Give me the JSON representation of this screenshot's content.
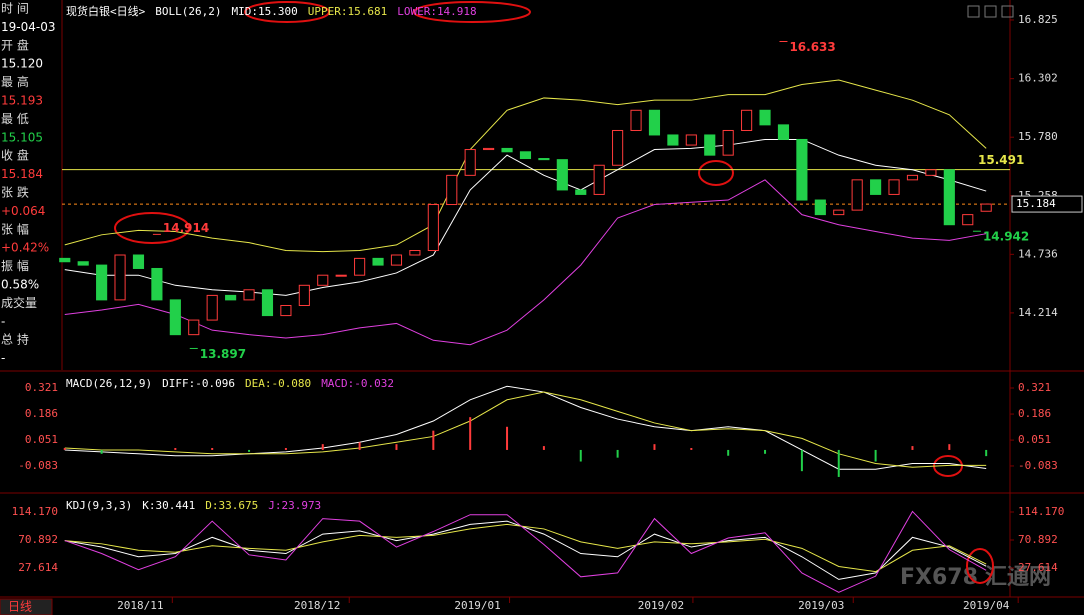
{
  "sidebar": [
    {
      "text": "时 间",
      "color": "#dddddd"
    },
    {
      "text": "19-04-03",
      "color": "#ffffff"
    },
    {
      "text": "开 盘",
      "color": "#dddddd"
    },
    {
      "text": "15.120",
      "color": "#ffffff"
    },
    {
      "text": "最 高",
      "color": "#dddddd"
    },
    {
      "text": "15.193",
      "color": "#ff3b3b"
    },
    {
      "text": "最 低",
      "color": "#dddddd"
    },
    {
      "text": "15.105",
      "color": "#22d04a"
    },
    {
      "text": "收 盘",
      "color": "#dddddd"
    },
    {
      "text": "15.184",
      "color": "#ff3b3b"
    },
    {
      "text": "张 跌",
      "color": "#dddddd"
    },
    {
      "text": "+0.064",
      "color": "#ff3b3b"
    },
    {
      "text": "张 幅",
      "color": "#dddddd"
    },
    {
      "text": "+0.42%",
      "color": "#ff3b3b"
    },
    {
      "text": "振 幅",
      "color": "#dddddd"
    },
    {
      "text": "0.58%",
      "color": "#ffffff"
    },
    {
      "text": "成交量",
      "color": "#dddddd"
    },
    {
      "text": "-",
      "color": "#ffffff"
    },
    {
      "text": "总 持",
      "color": "#dddddd"
    },
    {
      "text": "-",
      "color": "#ffffff"
    }
  ],
  "tab": "日线",
  "watermark": {
    "brand": "FX678",
    "site": "汇通网"
  },
  "chart_data": [
    {
      "type": "candlestick",
      "title": "现货白银<日线>",
      "indicator": "BOLL(26,2)",
      "up_color": "#ff3b3b",
      "down_color": "#22d04a",
      "x": [
        0,
        2,
        4,
        6,
        8,
        10,
        12,
        14,
        16,
        18,
        20,
        22,
        24,
        26,
        28,
        30,
        32,
        34,
        36,
        38,
        40,
        42,
        44,
        46,
        48,
        50,
        52,
        54,
        56,
        58,
        60,
        62,
        64,
        66,
        68,
        70,
        72,
        74,
        76,
        78,
        80,
        82,
        84,
        86,
        88,
        90,
        92,
        94,
        96,
        98,
        100
      ],
      "open": [
        14.7,
        14.67,
        14.64,
        14.33,
        14.73,
        14.61,
        14.33,
        14.02,
        14.15,
        14.37,
        14.33,
        14.42,
        14.19,
        14.28,
        14.46,
        14.55,
        14.55,
        14.7,
        14.64,
        14.73,
        14.77,
        15.18,
        15.44,
        15.67,
        15.68,
        15.65,
        15.59,
        15.58,
        15.31,
        15.27,
        15.53,
        15.84,
        16.02,
        15.8,
        15.71,
        15.8,
        15.62,
        15.84,
        16.02,
        15.89,
        15.76,
        15.22,
        15.09,
        15.13,
        15.4,
        15.27,
        15.4,
        15.44,
        15.49,
        15.0,
        15.12
      ],
      "close": [
        14.67,
        14.64,
        14.33,
        14.73,
        14.61,
        14.33,
        14.02,
        14.15,
        14.37,
        14.33,
        14.42,
        14.19,
        14.28,
        14.46,
        14.55,
        14.55,
        14.7,
        14.64,
        14.73,
        14.77,
        15.18,
        15.44,
        15.67,
        15.68,
        15.65,
        15.59,
        15.58,
        15.31,
        15.27,
        15.53,
        15.84,
        16.02,
        15.8,
        15.71,
        15.8,
        15.62,
        15.84,
        16.02,
        15.89,
        15.76,
        15.22,
        15.09,
        15.13,
        15.4,
        15.27,
        15.4,
        15.44,
        15.49,
        15.0,
        15.09,
        15.184
      ],
      "series": [
        {
          "name": "MID:15.300",
          "color": "#ffffff",
          "x": [
            0,
            4,
            8,
            12,
            16,
            20,
            24,
            28,
            32,
            36,
            40,
            44,
            48,
            52,
            56,
            60,
            64,
            68,
            72,
            76,
            80,
            84,
            88,
            92,
            96,
            100
          ],
          "values": [
            14.6,
            14.55,
            14.55,
            14.46,
            14.42,
            14.4,
            14.37,
            14.44,
            14.49,
            14.57,
            14.73,
            15.31,
            15.62,
            15.44,
            15.31,
            15.49,
            15.67,
            15.68,
            15.71,
            15.76,
            15.76,
            15.62,
            15.53,
            15.49,
            15.4,
            15.3
          ]
        },
        {
          "name": "UPPER:15.681",
          "color": "#e6e64a",
          "x": [
            0,
            4,
            8,
            12,
            16,
            20,
            24,
            28,
            32,
            36,
            40,
            44,
            48,
            52,
            56,
            60,
            64,
            68,
            72,
            76,
            80,
            84,
            88,
            92,
            96,
            100
          ],
          "values": [
            14.82,
            14.91,
            14.95,
            14.94,
            14.88,
            14.84,
            14.77,
            14.76,
            14.77,
            14.82,
            15.0,
            15.67,
            16.02,
            16.13,
            16.11,
            16.07,
            16.11,
            16.11,
            16.16,
            16.16,
            16.25,
            16.29,
            16.2,
            16.11,
            15.98,
            15.68
          ]
        },
        {
          "name": "LOWER:14.918",
          "color": "#e040e0",
          "x": [
            0,
            4,
            8,
            12,
            16,
            20,
            24,
            28,
            32,
            36,
            40,
            44,
            48,
            52,
            56,
            60,
            64,
            68,
            72,
            76,
            80,
            84,
            88,
            92,
            96,
            100
          ],
          "values": [
            14.2,
            14.24,
            14.29,
            14.2,
            14.06,
            14.02,
            13.99,
            14.02,
            14.08,
            14.12,
            13.97,
            13.93,
            14.06,
            14.33,
            14.64,
            15.06,
            15.18,
            15.2,
            15.22,
            15.4,
            15.09,
            15.0,
            14.94,
            14.88,
            14.86,
            14.92
          ]
        }
      ],
      "hline": {
        "value": 15.491,
        "color": "#e6e64a"
      },
      "last": {
        "value": 15.184,
        "color": "#ff8c1a"
      },
      "annotations": [
        {
          "x": 78,
          "value": 16.633,
          "color": "#ff3b3b"
        },
        {
          "x": 14,
          "value": 13.897,
          "color": "#22d04a"
        },
        {
          "x": 10,
          "value": 14.914,
          "color": "#ff3b3b"
        },
        {
          "x": 99,
          "value": 14.942,
          "color": "#22d04a"
        }
      ],
      "xlim": [
        -0.3,
        101.5
      ],
      "ylim": [
        13.705,
        17.003
      ],
      "yticks": [
        16.825,
        16.302,
        {
          "value": 15.78,
          "label": "15.780"
        },
        15.258,
        14.736,
        14.214
      ]
    },
    {
      "type": "macd",
      "title": "MACD(26,12,9)",
      "up_color": "#ff3b3b",
      "down_color": "#22d04a",
      "x": [
        0,
        4,
        8,
        12,
        16,
        20,
        24,
        28,
        32,
        36,
        40,
        44,
        48,
        52,
        56,
        60,
        64,
        68,
        72,
        76,
        80,
        84,
        88,
        92,
        96,
        100
      ],
      "series": [
        {
          "name": "DIFF:-0.096",
          "color": "#ffffff",
          "values": [
            0.0,
            -0.01,
            -0.02,
            -0.03,
            -0.03,
            -0.02,
            -0.01,
            0.01,
            0.04,
            0.08,
            0.15,
            0.26,
            0.33,
            0.3,
            0.22,
            0.16,
            0.12,
            0.1,
            0.12,
            0.1,
            0.0,
            -0.1,
            -0.1,
            -0.07,
            -0.07,
            -0.096
          ]
        },
        {
          "name": "DEA:-0.080",
          "color": "#e6e64a",
          "values": [
            0.01,
            0.0,
            0.0,
            -0.01,
            -0.02,
            -0.02,
            -0.02,
            -0.01,
            0.01,
            0.04,
            0.07,
            0.15,
            0.26,
            0.3,
            0.26,
            0.2,
            0.14,
            0.1,
            0.11,
            0.1,
            0.06,
            -0.02,
            -0.07,
            -0.09,
            -0.08,
            -0.08
          ]
        },
        {
          "name": "MACD:-0.032",
          "color": "#e040e0",
          "bars": true,
          "values": [
            0.01,
            -0.02,
            0.0,
            0.01,
            0.01,
            -0.01,
            0.01,
            0.03,
            0.04,
            0.03,
            0.1,
            0.17,
            0.12,
            0.02,
            -0.06,
            -0.04,
            0.03,
            0.01,
            -0.03,
            -0.02,
            -0.11,
            -0.14,
            -0.06,
            0.02,
            0.03,
            -0.032
          ]
        }
      ],
      "xlim": [
        -0.3,
        101.5
      ],
      "ylim": [
        -0.218,
        0.404
      ],
      "yticks": [
        0.321,
        0.186,
        0.051,
        -0.083
      ]
    },
    {
      "type": "kdj",
      "title": "KDJ(9,3,3)",
      "x": [
        0,
        4,
        8,
        12,
        16,
        20,
        24,
        28,
        32,
        36,
        40,
        44,
        48,
        52,
        56,
        60,
        64,
        68,
        72,
        76,
        80,
        84,
        88,
        92,
        96,
        100
      ],
      "series": [
        {
          "name": "K:30.441",
          "color": "#ffffff",
          "values": [
            70,
            60,
            45,
            50,
            75,
            55,
            50,
            80,
            85,
            70,
            80,
            95,
            100,
            80,
            50,
            45,
            80,
            60,
            70,
            75,
            45,
            10,
            20,
            75,
            60,
            30.441
          ]
        },
        {
          "name": "D:33.675",
          "color": "#e6e64a",
          "values": [
            70,
            65,
            55,
            52,
            62,
            58,
            55,
            68,
            78,
            75,
            78,
            88,
            95,
            88,
            68,
            58,
            68,
            65,
            68,
            72,
            58,
            30,
            22,
            55,
            62,
            33.675
          ]
        },
        {
          "name": "J:23.973",
          "color": "#e040e0",
          "values": [
            70,
            50,
            25,
            45,
            100,
            48,
            40,
            104,
            100,
            60,
            84,
            110,
            110,
            64,
            14,
            20,
            104,
            50,
            74,
            82,
            20,
            -10,
            15,
            115,
            56,
            23.973
          ]
        }
      ],
      "xlim": [
        -0.3,
        101.5
      ],
      "ylim": [
        -14.12,
        141.99
      ],
      "yticks": [
        {
          "value": 114.17,
          "label": "114.170"
        },
        70.892,
        27.614
      ],
      "xticks": [
        {
          "value": 8.2,
          "label": "2018/11"
        },
        {
          "value": 27.4,
          "label": "2018/12"
        },
        {
          "value": 44.8,
          "label": "2019/01"
        },
        {
          "value": 64.7,
          "label": "2019/02"
        },
        {
          "value": 82.1,
          "label": "2019/03"
        },
        {
          "value": 100,
          "label": "2019/04"
        }
      ]
    }
  ]
}
